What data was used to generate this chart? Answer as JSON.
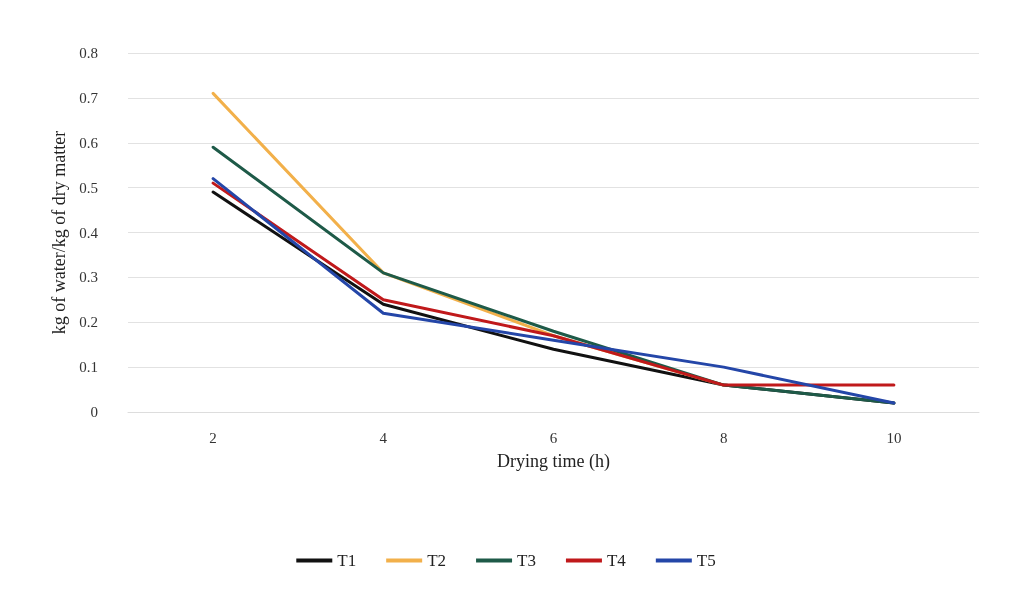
{
  "chart_data": {
    "type": "line",
    "xlabel": "Drying time (h)",
    "ylabel": "kg of water/kg of dry matter",
    "categories": [
      "2",
      "4",
      "6",
      "8",
      "10"
    ],
    "ylim": [
      0,
      0.8
    ],
    "yticks": [
      0,
      0.1,
      0.2,
      0.3,
      0.4,
      0.5,
      0.6,
      0.7,
      0.8
    ],
    "grid": "y",
    "legend": "bottom",
    "marker": "none",
    "line_style": "solid",
    "series": [
      {
        "name": "T1",
        "color": "#111111",
        "values": [
          0.49,
          0.24,
          0.14,
          0.06,
          0.02
        ]
      },
      {
        "name": "T2",
        "color": "#f2b04a",
        "values": [
          0.71,
          0.31,
          0.17,
          0.06,
          null
        ]
      },
      {
        "name": "T3",
        "color": "#1e5a48",
        "values": [
          0.59,
          0.31,
          0.18,
          0.06,
          0.02
        ]
      },
      {
        "name": "T4",
        "color": "#c0191b",
        "values": [
          0.51,
          0.25,
          0.17,
          0.06,
          0.06
        ]
      },
      {
        "name": "T5",
        "color": "#2446a8",
        "values": [
          0.52,
          0.22,
          0.16,
          0.1,
          0.02
        ]
      }
    ]
  }
}
